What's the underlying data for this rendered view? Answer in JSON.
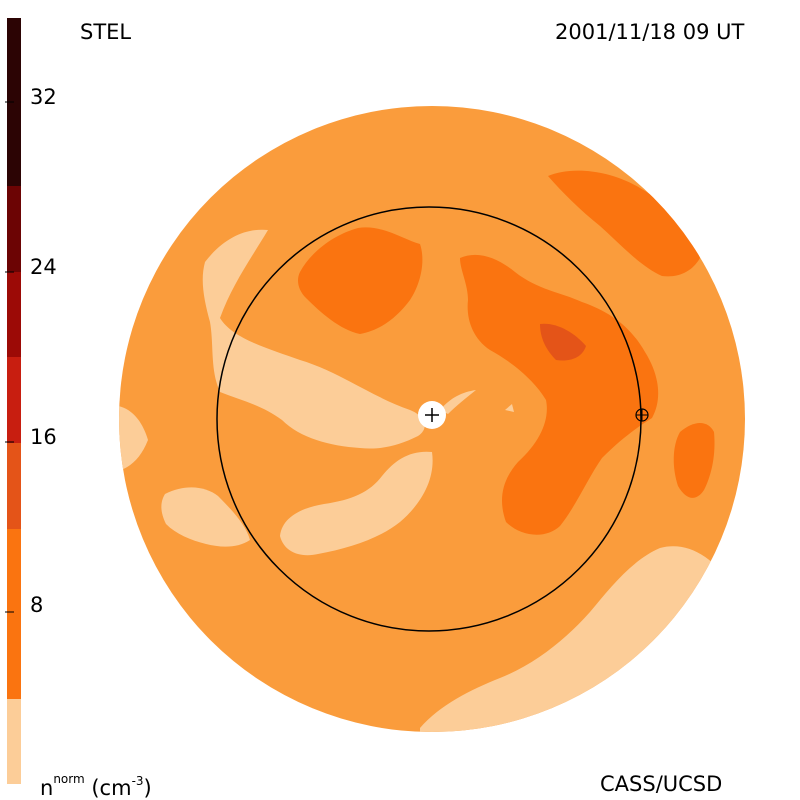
{
  "header": {
    "source_label": "STEL",
    "timestamp": "2001/11/18 09 UT"
  },
  "footer": {
    "credit": "CASS/UCSD",
    "unit_base": "n",
    "unit_sup": "norm",
    "unit_rest": "(cm",
    "unit_exp": "-3",
    "unit_close": ")"
  },
  "colorbar": {
    "tick_labels": [
      "8",
      "16",
      "24",
      "32"
    ],
    "band_colors": [
      "#fccd98",
      "#fa9c3c",
      "#fa7410",
      "#e45418",
      "#c81e10",
      "#9c0a06",
      "#6c0404",
      "#2c0404"
    ]
  },
  "map": {
    "background_color": "#fa9c3c",
    "level_colors": {
      "low": "#fccd98",
      "mid": "#fa9c3c",
      "high": "#fa7410",
      "peak": "#e45418"
    }
  }
}
